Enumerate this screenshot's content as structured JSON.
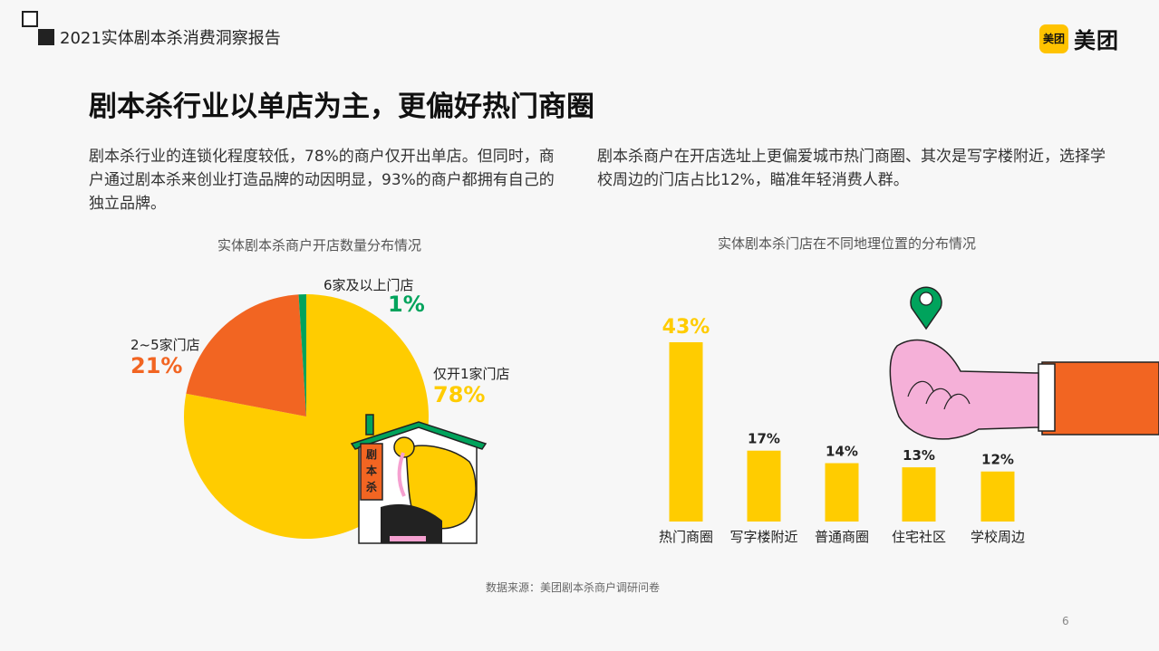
{
  "header": {
    "report_title": "2021实体剧本杀消费洞察报告",
    "brand_badge": "美团",
    "brand_text": "美团"
  },
  "headline": "剧本杀行业以单店为主，更偏好热门商圈",
  "paragraphs": {
    "left": "剧本杀行业的连锁化程度较低，78%的商户仅开出单店。但同时，商户通过剧本杀来创业打造品牌的动因明显，93%的商户都拥有自己的独立品牌。",
    "right": "剧本杀商户在开店选址上更偏爱城市热门商圈、其次是写字楼附近，选择学校周边的门店占比12%，瞄准年轻消费人群。"
  },
  "illustration": {
    "sign_text": "剧本杀"
  },
  "chart_data": [
    {
      "type": "pie",
      "title": "实体剧本杀商户开店数量分布情况",
      "categories": [
        "仅开1家门店",
        "2~5家门店",
        "6家及以上门店"
      ],
      "values": [
        78,
        21,
        1
      ],
      "value_labels": [
        "78%",
        "21%",
        "1%"
      ],
      "colors": [
        "#ffcc00",
        "#f26522",
        "#00a35c"
      ]
    },
    {
      "type": "bar",
      "title": "实体剧本杀门店在不同地理位置的分布情况",
      "categories": [
        "热门商圈",
        "写字楼附近",
        "普通商圈",
        "住宅社区",
        "学校周边"
      ],
      "values": [
        43,
        17,
        14,
        13,
        12
      ],
      "value_labels": [
        "43%",
        "17%",
        "14%",
        "13%",
        "12%"
      ],
      "highlight_color": "#ffcc00",
      "label_colors": [
        "#ffcc00",
        "#222222",
        "#222222",
        "#222222",
        "#222222"
      ]
    }
  ],
  "footer": {
    "source": "数据来源：美团剧本杀商户调研问卷",
    "page": "6"
  }
}
